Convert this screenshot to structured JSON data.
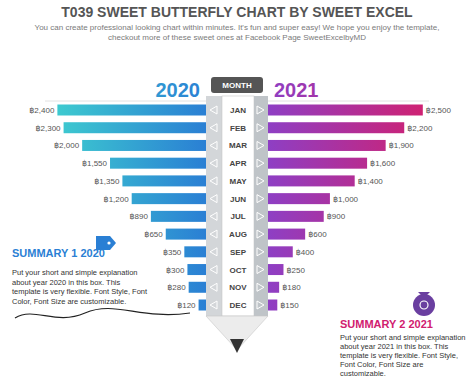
{
  "chart_data": {
    "type": "bar",
    "orientation": "horizontal",
    "title": "T039 SWEET BUTTERFLY CHART BY SWEET EXCEL",
    "subtitle": "You can create professional looking chart within minutes. It's fun and super easy! We hope you enjoy the template, checkout more of these sweet ones at Facebook Page SweetExcelbyMD",
    "ylabel": "MONTH",
    "categories": [
      "JAN",
      "FEB",
      "MAR",
      "APR",
      "MAY",
      "JUN",
      "JUL",
      "AUG",
      "SEP",
      "OCT",
      "NOV",
      "DEC"
    ],
    "series": [
      {
        "name": "2020",
        "color": "#2a7fd4",
        "values": [
          2400,
          2300,
          2000,
          1550,
          1350,
          1200,
          890,
          650,
          350,
          300,
          280,
          120
        ],
        "value_labels": [
          "฿2,400",
          "฿2,300",
          "฿2,000",
          "฿1,550",
          "฿1,350",
          "฿1,200",
          "฿890",
          "฿650",
          "฿350",
          "฿300",
          "฿280",
          "฿120"
        ]
      },
      {
        "name": "2021",
        "color": "#d1206f",
        "values": [
          2500,
          2200,
          1900,
          1600,
          1400,
          1000,
          900,
          600,
          400,
          250,
          180,
          150
        ],
        "value_labels": [
          "฿2,500",
          "฿2,200",
          "฿1,900",
          "฿1,600",
          "฿1,400",
          "฿1,000",
          "฿900",
          "฿600",
          "฿400",
          "฿250",
          "฿180",
          "฿150"
        ]
      }
    ],
    "xlim": [
      0,
      2600
    ],
    "data_labels": true,
    "tick_labels": "y",
    "annotations": [
      {
        "title": "SUMMARY 1 2020",
        "text": "Put your short and simple explanation about year 2020 in this box. This template is very flexible. Font Style, Font Color, Font Size are customizable."
      },
      {
        "title": "SUMMARY 2 2021",
        "text": "Put your short and simple explanation about year 2021 in this box. This template is very flexible. Font Style, Font Color, Font Size are customizable."
      }
    ]
  }
}
